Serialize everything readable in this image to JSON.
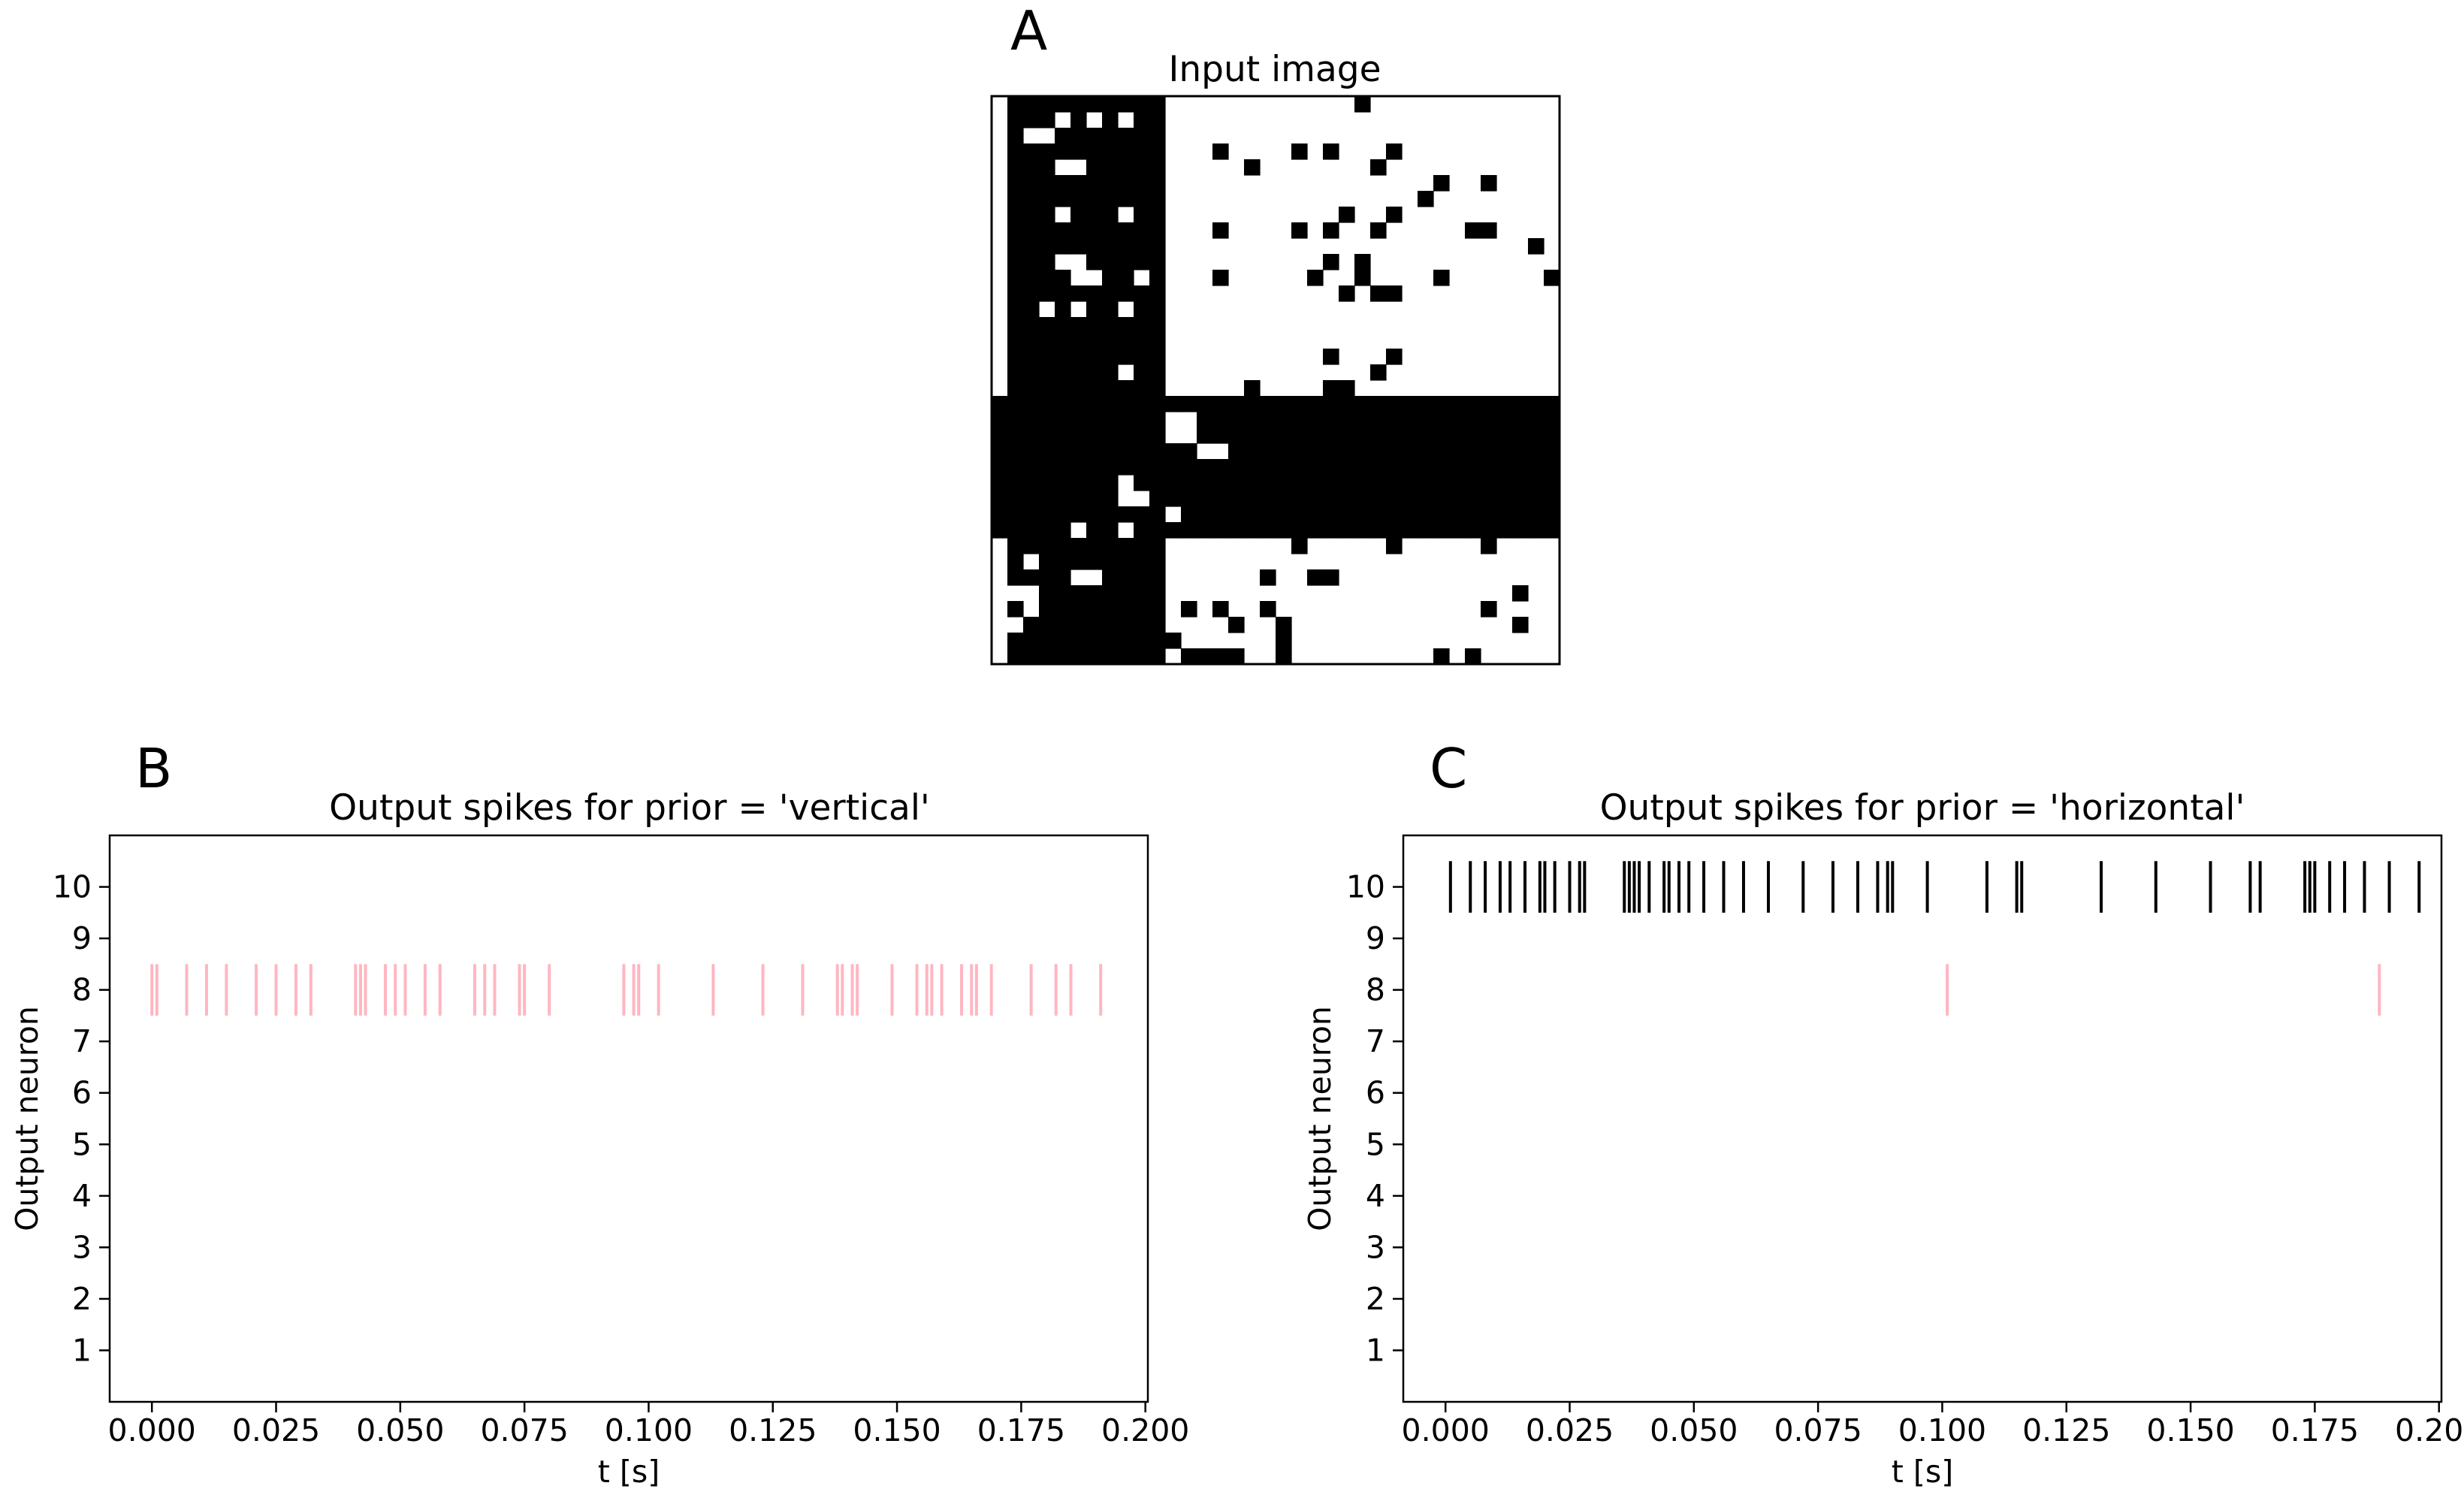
{
  "chart_data": [
    {
      "panel_label": "A",
      "type": "heatmap",
      "title": "Input image",
      "rows": 36,
      "cols": 36,
      "colors": {
        "on": "#000000",
        "off": "#ffffff"
      },
      "vertical_bar_cols": [
        1,
        10
      ],
      "horizontal_bar_rows": [
        19,
        27
      ],
      "noise_on": [
        [
          0,
          23
        ],
        [
          3,
          14
        ],
        [
          3,
          19
        ],
        [
          3,
          21
        ],
        [
          3,
          25
        ],
        [
          4,
          16
        ],
        [
          4,
          24
        ],
        [
          5,
          28
        ],
        [
          5,
          31
        ],
        [
          6,
          27
        ],
        [
          7,
          22
        ],
        [
          7,
          25
        ],
        [
          8,
          9
        ],
        [
          8,
          14
        ],
        [
          8,
          19
        ],
        [
          8,
          21
        ],
        [
          8,
          24
        ],
        [
          8,
          30
        ],
        [
          8,
          31
        ],
        [
          9,
          34
        ],
        [
          10,
          21
        ],
        [
          10,
          23
        ],
        [
          11,
          14
        ],
        [
          11,
          20
        ],
        [
          11,
          23
        ],
        [
          11,
          28
        ],
        [
          11,
          35
        ],
        [
          12,
          22
        ],
        [
          12,
          24
        ],
        [
          12,
          25
        ],
        [
          16,
          21
        ],
        [
          16,
          25
        ],
        [
          17,
          24
        ],
        [
          18,
          16
        ],
        [
          18,
          21
        ],
        [
          18,
          22
        ],
        [
          20,
          17
        ],
        [
          20,
          28
        ],
        [
          20,
          29
        ],
        [
          24,
          16
        ],
        [
          24,
          20
        ],
        [
          25,
          20
        ],
        [
          26,
          17
        ],
        [
          27,
          11
        ],
        [
          27,
          13
        ],
        [
          27,
          15
        ],
        [
          27,
          17
        ],
        [
          28,
          19
        ],
        [
          28,
          25
        ],
        [
          28,
          31
        ],
        [
          30,
          17
        ],
        [
          30,
          20
        ],
        [
          30,
          21
        ],
        [
          31,
          33
        ],
        [
          32,
          12
        ],
        [
          32,
          14
        ],
        [
          32,
          17
        ],
        [
          32,
          31
        ],
        [
          33,
          15
        ],
        [
          33,
          18
        ],
        [
          33,
          33
        ],
        [
          34,
          11
        ],
        [
          34,
          18
        ],
        [
          35,
          12
        ],
        [
          35,
          13
        ],
        [
          35,
          14
        ],
        [
          35,
          15
        ],
        [
          35,
          18
        ],
        [
          35,
          28
        ],
        [
          35,
          30
        ]
      ],
      "noise_off": [
        [
          1,
          4
        ],
        [
          1,
          6
        ],
        [
          1,
          8
        ],
        [
          2,
          2
        ],
        [
          2,
          3
        ],
        [
          4,
          4
        ],
        [
          4,
          5
        ],
        [
          7,
          4
        ],
        [
          7,
          8
        ],
        [
          8,
          0
        ],
        [
          10,
          4
        ],
        [
          10,
          5
        ],
        [
          11,
          5
        ],
        [
          11,
          6
        ],
        [
          11,
          9
        ],
        [
          13,
          3
        ],
        [
          13,
          5
        ],
        [
          13,
          8
        ],
        [
          14,
          0
        ],
        [
          15,
          0
        ],
        [
          16,
          0
        ],
        [
          17,
          0
        ],
        [
          18,
          0
        ],
        [
          17,
          8
        ],
        [
          20,
          11
        ],
        [
          20,
          12
        ],
        [
          21,
          11
        ],
        [
          21,
          12
        ],
        [
          22,
          13
        ],
        [
          22,
          14
        ],
        [
          24,
          8
        ],
        [
          25,
          8
        ],
        [
          25,
          9
        ],
        [
          26,
          11
        ],
        [
          27,
          5
        ],
        [
          27,
          8
        ],
        [
          29,
          2
        ],
        [
          29,
          34
        ],
        [
          30,
          5
        ],
        [
          30,
          6
        ],
        [
          31,
          1
        ],
        [
          31,
          2
        ],
        [
          32,
          2
        ],
        [
          33,
          0
        ],
        [
          33,
          1
        ]
      ]
    },
    {
      "panel_label": "B",
      "type": "scatter",
      "marker": "vertical tick",
      "title": "Output spikes for prior = 'vertical'",
      "xlabel": "t [s]",
      "ylabel": "Output neuron",
      "xlim": [
        -0.0085,
        0.2005
      ],
      "ylim": [
        0,
        11
      ],
      "xticks": [
        "0.000",
        "0.025",
        "0.050",
        "0.075",
        "0.100",
        "0.125",
        "0.150",
        "0.175",
        "0.200"
      ],
      "yticks": [
        "1",
        "2",
        "3",
        "4",
        "5",
        "6",
        "7",
        "8",
        "9",
        "10"
      ],
      "spikes": [
        {
          "neuron": 8,
          "color": "#ffb6c1",
          "times": [
            0.0,
            0.001,
            0.007,
            0.011,
            0.015,
            0.021,
            0.025,
            0.029,
            0.032,
            0.041,
            0.042,
            0.043,
            0.047,
            0.049,
            0.051,
            0.055,
            0.058,
            0.065,
            0.067,
            0.069,
            0.074,
            0.075,
            0.08,
            0.095,
            0.097,
            0.098,
            0.102,
            0.113,
            0.123,
            0.131,
            0.138,
            0.139,
            0.141,
            0.142,
            0.149,
            0.154,
            0.156,
            0.157,
            0.159,
            0.163,
            0.165,
            0.166,
            0.169,
            0.177,
            0.182,
            0.185,
            0.191
          ]
        }
      ]
    },
    {
      "panel_label": "C",
      "type": "scatter",
      "marker": "vertical tick",
      "title": "Output spikes for prior = 'horizontal'",
      "xlabel": "t [s]",
      "ylabel": "Output neuron",
      "xlim": [
        -0.0085,
        0.2005
      ],
      "ylim": [
        0,
        11
      ],
      "xticks": [
        "0.000",
        "0.025",
        "0.050",
        "0.075",
        "0.100",
        "0.125",
        "0.150",
        "0.175",
        "0.200"
      ],
      "yticks": [
        "1",
        "2",
        "3",
        "4",
        "5",
        "6",
        "7",
        "8",
        "9",
        "10"
      ],
      "spikes": [
        {
          "neuron": 10,
          "color": "#000000",
          "times": [
            0.001,
            0.005,
            0.008,
            0.011,
            0.013,
            0.016,
            0.019,
            0.02,
            0.022,
            0.025,
            0.027,
            0.028,
            0.036,
            0.037,
            0.038,
            0.039,
            0.041,
            0.044,
            0.045,
            0.047,
            0.049,
            0.052,
            0.056,
            0.06,
            0.065,
            0.072,
            0.078,
            0.083,
            0.087,
            0.089,
            0.09,
            0.097,
            0.109,
            0.115,
            0.116,
            0.132,
            0.143,
            0.154,
            0.162,
            0.164,
            0.173,
            0.174,
            0.175,
            0.178,
            0.181,
            0.185,
            0.19,
            0.196
          ]
        },
        {
          "neuron": 8,
          "color": "#ffb6c1",
          "times": [
            0.101,
            0.188
          ]
        }
      ]
    }
  ]
}
